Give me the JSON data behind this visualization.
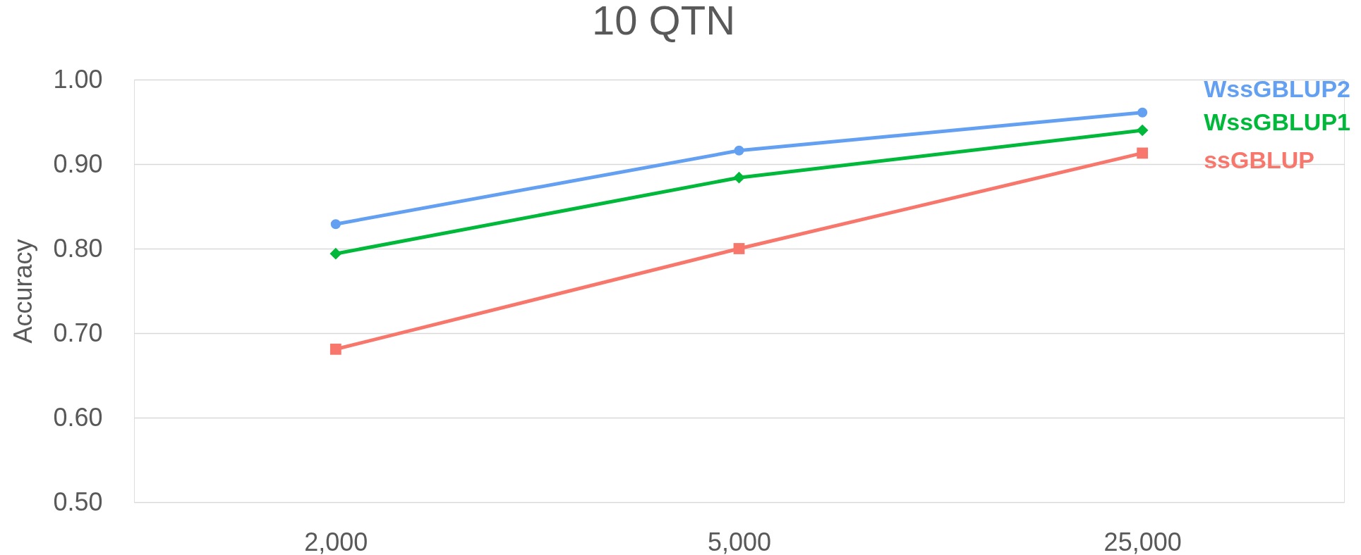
{
  "chart_data": {
    "type": "line",
    "title": "10 QTN",
    "ylabel": "Accuracy",
    "categories": [
      "2,000",
      "5,000",
      "25,000"
    ],
    "ylim": [
      0.5,
      1.0
    ],
    "yticks": [
      {
        "value": 0.5,
        "label": "0.50"
      },
      {
        "value": 0.6,
        "label": "0.60"
      },
      {
        "value": 0.7,
        "label": "0.70"
      },
      {
        "value": 0.8,
        "label": "0.80"
      },
      {
        "value": 0.9,
        "label": "0.90"
      },
      {
        "value": 1.0,
        "label": "1.00"
      }
    ],
    "grid": "y",
    "series": [
      {
        "name": "WssGBLUP2",
        "color": "#64a0f2",
        "marker": "circle",
        "values": [
          0.829,
          0.916,
          0.961
        ]
      },
      {
        "name": "WssGBLUP1",
        "color": "#00b83a",
        "marker": "diamond",
        "values": [
          0.794,
          0.884,
          0.94
        ]
      },
      {
        "name": "ssGBLUP",
        "color": "#f8776d",
        "marker": "square",
        "values": [
          0.681,
          0.8,
          0.913
        ]
      }
    ]
  }
}
